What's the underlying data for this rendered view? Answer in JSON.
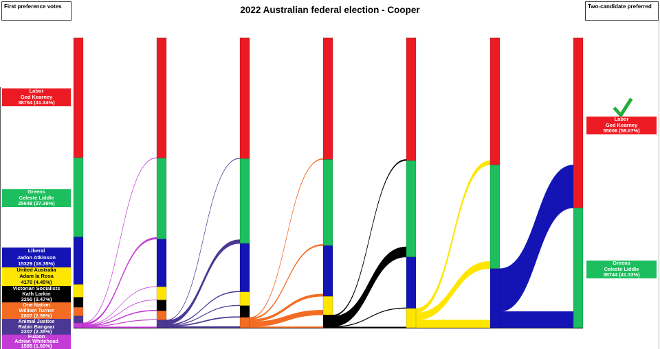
{
  "title": "2022 Australian federal election - Cooper",
  "left_header": "First preference votes",
  "right_header": "Two-candidate preferred",
  "winner_mark": "check",
  "winner_mark_color": "#21ad3c",
  "chart_data": {
    "type": "sankey",
    "title": "2022 Australian federal election - Cooper",
    "unit": "votes",
    "total_formal_votes": 93750,
    "party_order": [
      "labor",
      "greens",
      "liberal",
      "uap",
      "vs",
      "on",
      "aj",
      "fusion"
    ],
    "parties": {
      "labor": {
        "party": "Labor",
        "candidate": "Ged Kearney",
        "color": "#ec1b23",
        "text_color": "#ffffff"
      },
      "greens": {
        "party": "Greens",
        "candidate": "Celeste Liddle",
        "color": "#1cbe5d",
        "text_color": "#ffffff"
      },
      "liberal": {
        "party": "Liberal",
        "candidate": "Jadon Atkinson",
        "color": "#1414b4",
        "text_color": "#ffffff"
      },
      "uap": {
        "party": "United Australia",
        "candidate": "Adam la Rosa",
        "color": "#ffe600",
        "text_color": "#000000"
      },
      "vs": {
        "party": "Victorian Socialists",
        "candidate": "Kath Larkin",
        "color": "#000000",
        "text_color": "#ffffff"
      },
      "on": {
        "party": "One Nation",
        "candidate": "William Turner",
        "color": "#f36c23",
        "text_color": "#ffffff"
      },
      "aj": {
        "party": "Animal Justice",
        "candidate": "Rabin Bangaar",
        "color": "#4b3894",
        "text_color": "#ffffff"
      },
      "fusion": {
        "party": "Fusion",
        "candidate": "Adrian Whitehead",
        "color": "#c43bd6",
        "text_color": "#ffffff"
      }
    },
    "first_preferences": [
      {
        "key": "labor",
        "votes": 38754,
        "pct": "41.34%"
      },
      {
        "key": "greens",
        "votes": 25648,
        "pct": "27.36%"
      },
      {
        "key": "liberal",
        "votes": 15329,
        "pct": "16.35%"
      },
      {
        "key": "uap",
        "votes": 4170,
        "pct": "4.45%"
      },
      {
        "key": "vs",
        "votes": 3250,
        "pct": "3.47%"
      },
      {
        "key": "on",
        "votes": 2807,
        "pct": "2.99%"
      },
      {
        "key": "aj",
        "votes": 2207,
        "pct": "2.35%"
      },
      {
        "key": "fusion",
        "votes": 1585,
        "pct": "1.69%"
      }
    ],
    "two_candidate_preferred": [
      {
        "key": "labor",
        "votes": 55006,
        "pct": "58.67%",
        "winner": true
      },
      {
        "key": "greens",
        "votes": 38744,
        "pct": "41.33%",
        "winner": false
      }
    ],
    "elimination_rounds_estimated": [
      {
        "eliminated": "fusion",
        "transfers": {
          "labor": 150,
          "greens": 550,
          "liberal": 85,
          "uap": 100,
          "vs": 250,
          "on": 150,
          "aj": 300
        }
      },
      {
        "eliminated": "aj",
        "transfers": {
          "labor": 160,
          "greens": 1250,
          "liberal": 240,
          "uap": 180,
          "vs": 290,
          "on": 387
        }
      },
      {
        "eliminated": "on",
        "transfers": {
          "labor": 260,
          "greens": 420,
          "liberal": 760,
          "uap": 1560,
          "vs": 344
        }
      },
      {
        "eliminated": "vs",
        "transfers": {
          "labor": 400,
          "greens": 3300,
          "liberal": 184,
          "uap": 250
        }
      },
      {
        "eliminated": "uap",
        "transfers": {
          "labor": 1400,
          "greens": 2350,
          "liberal": 2510
        }
      },
      {
        "eliminated": "liberal",
        "transfers": {
          "labor": 13882,
          "greens": 5226
        }
      }
    ]
  }
}
